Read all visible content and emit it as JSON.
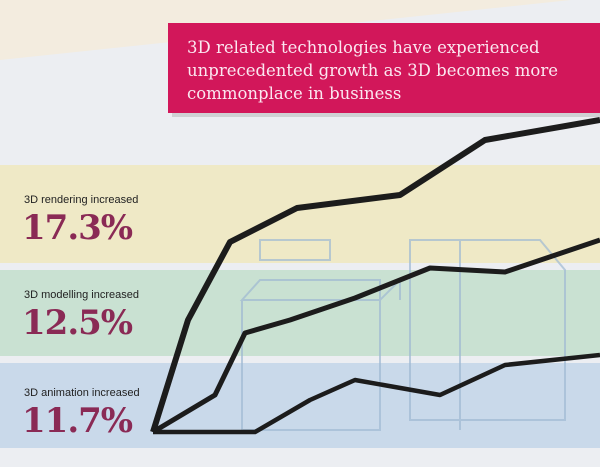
{
  "banner": {
    "text": "3D related technologies have experienced unprecedented growth as 3D becomes more commonplace in business",
    "color": "#d2175a"
  },
  "stats": [
    {
      "label": "3D rendering increased",
      "value": "17.3%"
    },
    {
      "label": "3D modelling increased",
      "value": "12.5%"
    },
    {
      "label": "3D animation increased",
      "value": "11.7%"
    }
  ]
}
